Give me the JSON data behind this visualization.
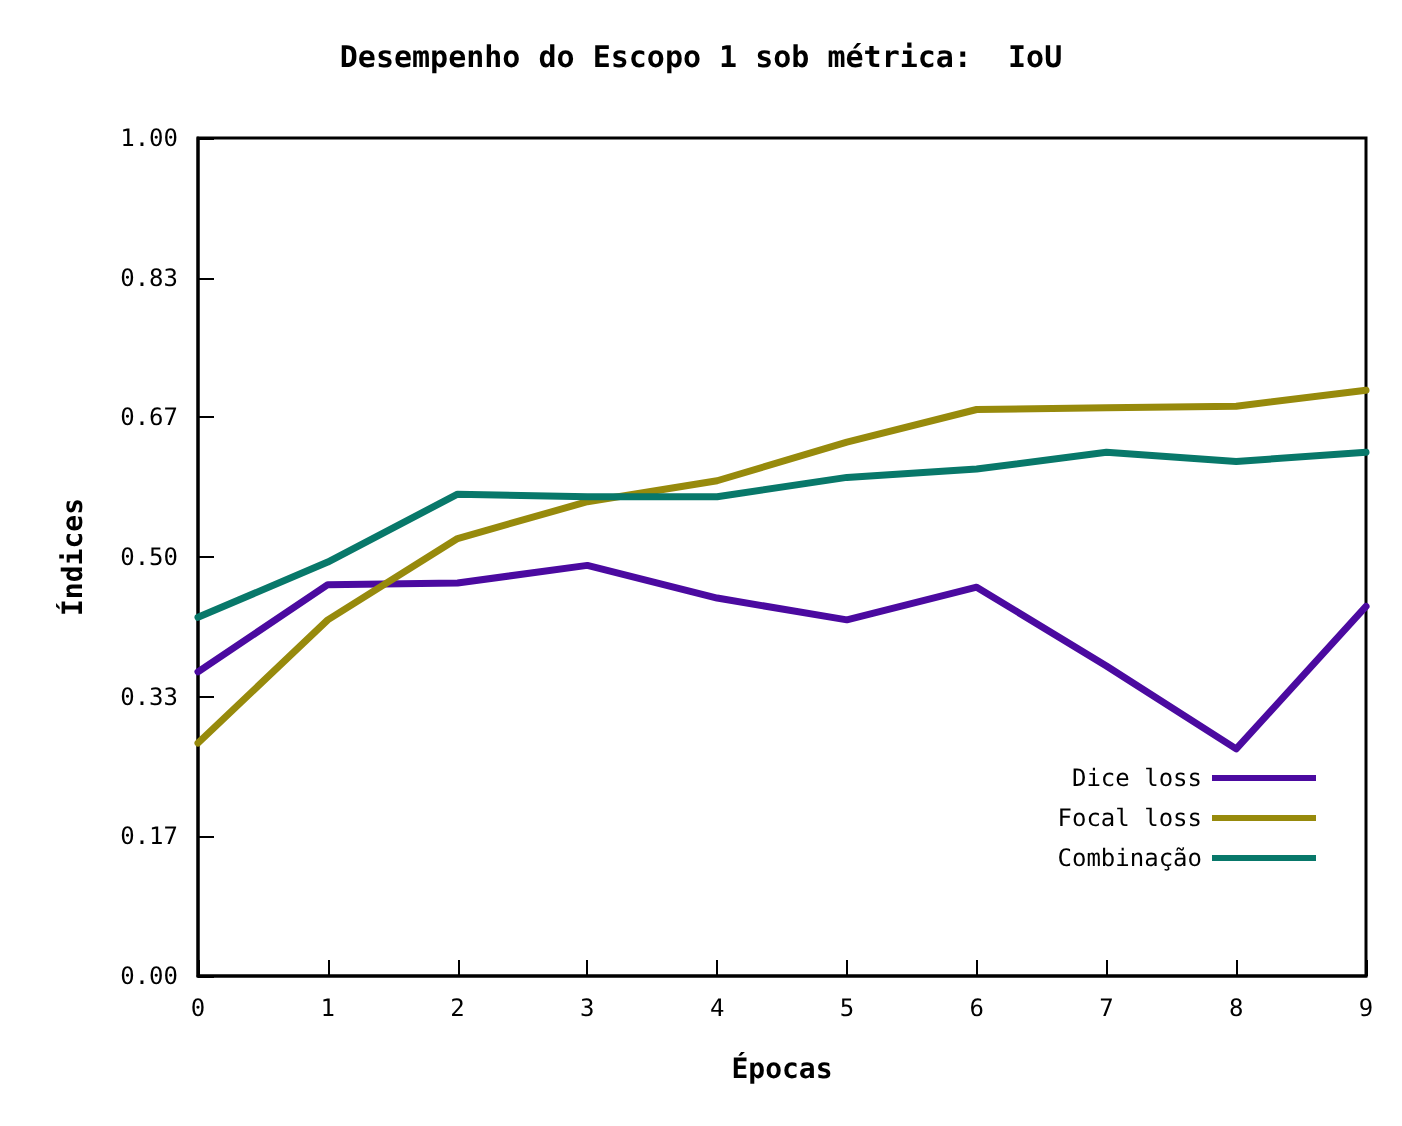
{
  "chart_data": {
    "type": "line",
    "title": "Desempenho do Escopo 1 sob métrica:  IoU",
    "xlabel": "Épocas",
    "ylabel": "Índices",
    "x": [
      0,
      1,
      2,
      3,
      4,
      5,
      6,
      7,
      8,
      9
    ],
    "xlim": [
      0,
      9
    ],
    "xticks": [
      0,
      1,
      2,
      3,
      4,
      5,
      6,
      7,
      8,
      9
    ],
    "ylim": [
      0,
      1
    ],
    "yticks": [
      {
        "value": 0,
        "label": "0.00"
      },
      {
        "value": 0.1667,
        "label": "0.17"
      },
      {
        "value": 0.3333,
        "label": "0.33"
      },
      {
        "value": 0.5,
        "label": "0.50"
      },
      {
        "value": 0.6667,
        "label": "0.67"
      },
      {
        "value": 0.8333,
        "label": "0.83"
      },
      {
        "value": 1,
        "label": "1.00"
      }
    ],
    "series": [
      {
        "name": "Dice loss",
        "color": "#4b0aa0",
        "values": [
          0.363,
          0.467,
          0.469,
          0.49,
          0.451,
          0.425,
          0.464,
          0.37,
          0.271,
          0.441
        ]
      },
      {
        "name": "Focal loss",
        "color": "#978a0c",
        "values": [
          0.278,
          0.425,
          0.522,
          0.566,
          0.591,
          0.637,
          0.676,
          0.678,
          0.68,
          0.699
        ]
      },
      {
        "name": "Combinação",
        "color": "#08786a",
        "values": [
          0.428,
          0.494,
          0.575,
          0.572,
          0.572,
          0.595,
          0.605,
          0.625,
          0.614,
          0.625
        ]
      }
    ],
    "grid": false,
    "legend": "bottom right",
    "marker": "none",
    "line_style": "solid"
  }
}
